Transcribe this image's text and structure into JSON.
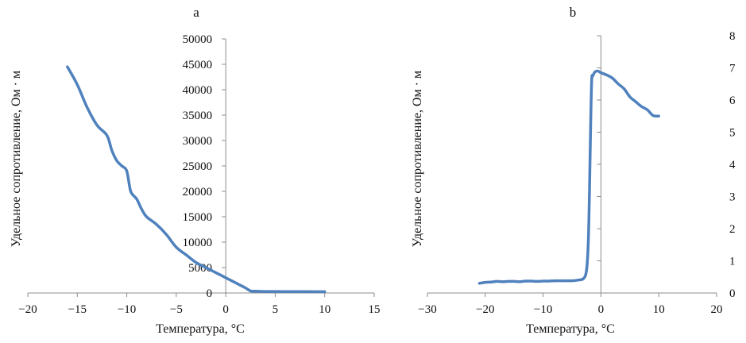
{
  "chart_data": [
    {
      "type": "line",
      "title": "a",
      "xlabel": "Температура, °C",
      "ylabel": "Удельное сопротивление, Ом · м",
      "xlim": [
        -20,
        15
      ],
      "ylim": [
        0,
        50000
      ],
      "x_ticks": [
        -20,
        -15,
        -10,
        -5,
        0,
        5,
        10,
        15
      ],
      "y_ticks": [
        0,
        5000,
        10000,
        15000,
        20000,
        25000,
        30000,
        35000,
        40000,
        45000,
        50000
      ],
      "x_tick_labels": [
        "−20",
        "−15",
        "−10",
        "−5",
        "0",
        "5",
        "10",
        "15"
      ],
      "y_tick_labels": [
        "0",
        "5000",
        "10000",
        "15000",
        "20000",
        "25000",
        "30000",
        "35000",
        "40000",
        "45000",
        "50000"
      ],
      "grid": false,
      "line_color": "#4f81bd",
      "series": [
        {
          "x": [
            -16,
            -15,
            -14,
            -13,
            -12,
            -11.5,
            -11,
            -10.5,
            -10,
            -9.6,
            -9,
            -8.5,
            -8,
            -7,
            -6,
            -5,
            -4,
            -3,
            -2,
            -1,
            0,
            1,
            2,
            2.5,
            3,
            4,
            5,
            6,
            7,
            8,
            9,
            10
          ],
          "y": [
            44500,
            41000,
            36500,
            33000,
            31000,
            28000,
            26000,
            25000,
            24000,
            20000,
            18500,
            16500,
            15000,
            13500,
            11500,
            9000,
            7500,
            6000,
            5000,
            4000,
            3000,
            2000,
            1000,
            400,
            350,
            300,
            300,
            280,
            280,
            270,
            260,
            250
          ]
        }
      ]
    },
    {
      "type": "line",
      "title": "b",
      "xlabel": "Температура, °C",
      "ylabel": "Удельное сопротивление, Ом · м",
      "xlim": [
        -30,
        20
      ],
      "ylim": [
        0,
        8
      ],
      "x_ticks": [
        -30,
        -20,
        -10,
        0,
        10,
        20
      ],
      "y_ticks": [
        0,
        1,
        2,
        3,
        4,
        5,
        6,
        7,
        8
      ],
      "x_tick_labels": [
        "−30",
        "−20",
        "−10",
        "0",
        "10",
        "20"
      ],
      "y_tick_labels": [
        "0",
        "1",
        "2",
        "3",
        "4",
        "5",
        "6",
        "7",
        "8"
      ],
      "grid": false,
      "line_color": "#4f81bd",
      "series": [
        {
          "x": [
            -21,
            -20,
            -19,
            -18,
            -17,
            -16,
            -15,
            -14,
            -13,
            -12,
            -11,
            -10,
            -9,
            -8,
            -7,
            -6,
            -5,
            -4,
            -3,
            -2.5,
            -2.2,
            -2,
            -1.8,
            -1.6,
            -1.4,
            -1,
            -0.5,
            0,
            1,
            2,
            3,
            4,
            5,
            6,
            7,
            8,
            9,
            10
          ],
          "y": [
            0.3,
            0.33,
            0.34,
            0.36,
            0.35,
            0.36,
            0.36,
            0.35,
            0.37,
            0.37,
            0.36,
            0.37,
            0.37,
            0.38,
            0.38,
            0.38,
            0.38,
            0.4,
            0.45,
            0.7,
            1.5,
            3,
            5,
            6.6,
            6.75,
            6.88,
            6.9,
            6.85,
            6.78,
            6.68,
            6.5,
            6.35,
            6.1,
            5.95,
            5.8,
            5.7,
            5.52,
            5.5
          ]
        }
      ]
    }
  ]
}
